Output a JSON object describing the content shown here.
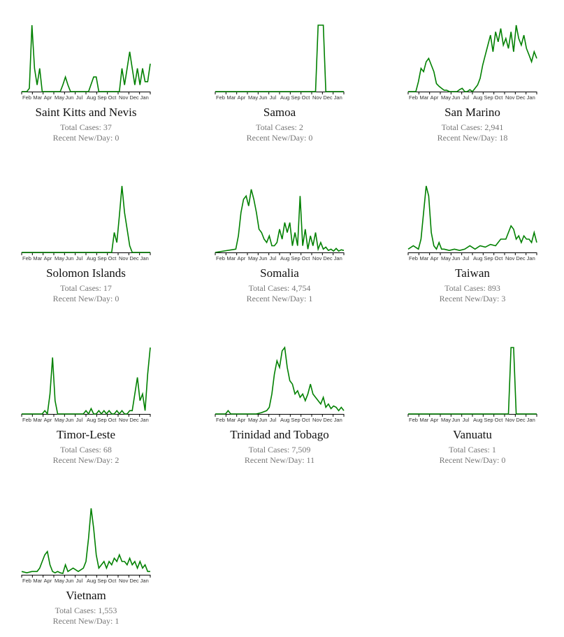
{
  "labels": {
    "total_prefix": "Total Cases: ",
    "recent_prefix": "Recent New/Day: "
  },
  "months": [
    "Feb",
    "Mar",
    "Apr",
    "May",
    "Jun",
    "Jul",
    "Aug",
    "Sep",
    "Oct",
    "Nov",
    "Dec",
    "Jan"
  ],
  "line_color": "#008000",
  "axis_color": "#000000",
  "chart_data": [
    {
      "type": "line",
      "name": "Saint Kitts and Nevis",
      "total": "37",
      "recent": "0",
      "x_ticks": [
        "Feb",
        "Mar",
        "Apr",
        "May",
        "Jun",
        "Jul",
        "Aug",
        "Sep",
        "Oct",
        "Nov",
        "Dec",
        "Jan"
      ],
      "ylim": [
        0,
        1
      ],
      "grid": false,
      "line_color": "#008000",
      "x": [
        0,
        2,
        3,
        4,
        5,
        6,
        7,
        8,
        9,
        10,
        11,
        12,
        14,
        15,
        16,
        17,
        18,
        19,
        20,
        21,
        22,
        23,
        24,
        25,
        26,
        28,
        29,
        30,
        31,
        32,
        33,
        34,
        35,
        36,
        38,
        39,
        40,
        41,
        42,
        43,
        44,
        45,
        46,
        47,
        48,
        49,
        50
      ],
      "values": [
        0,
        0,
        0.05,
        1,
        0.35,
        0.1,
        0.35,
        0,
        0,
        0,
        0,
        0,
        0,
        0,
        0.1,
        0.22,
        0.1,
        0,
        0,
        0,
        0,
        0,
        0,
        0,
        0,
        0.22,
        0.22,
        0,
        0,
        0,
        0,
        0,
        0,
        0,
        0,
        0.35,
        0.1,
        0.35,
        0.6,
        0.35,
        0.1,
        0.35,
        0.1,
        0.35,
        0.15,
        0.15,
        0.42
      ]
    },
    {
      "type": "line",
      "name": "Samoa",
      "total": "2",
      "recent": "0",
      "x_ticks": [
        "Feb",
        "Mar",
        "Apr",
        "May",
        "Jun",
        "Jul",
        "Aug",
        "Sep",
        "Oct",
        "Nov",
        "Dec",
        "Jan"
      ],
      "ylim": [
        0,
        1
      ],
      "grid": false,
      "line_color": "#008000",
      "x": [
        0,
        39,
        40,
        41,
        42,
        43,
        50
      ],
      "values": [
        0,
        0,
        1,
        1,
        1,
        0,
        0
      ]
    },
    {
      "type": "line",
      "name": "San Marino",
      "total": "2,941",
      "recent": "18",
      "x_ticks": [
        "Feb",
        "Mar",
        "Apr",
        "May",
        "Jun",
        "Jul",
        "Aug",
        "Sep",
        "Oct",
        "Nov",
        "Dec",
        "Jan"
      ],
      "ylim": [
        0,
        1
      ],
      "grid": false,
      "line_color": "#008000",
      "x": [
        0,
        3,
        4,
        5,
        6,
        7,
        8,
        9,
        10,
        11,
        12,
        13,
        14,
        15,
        16,
        17,
        18,
        19,
        20,
        21,
        22,
        23,
        24,
        25,
        26,
        27,
        28,
        29,
        30,
        31,
        32,
        33,
        34,
        35,
        36,
        37,
        38,
        39,
        40,
        41,
        42,
        43,
        44,
        45,
        46,
        47,
        48,
        49,
        50
      ],
      "values": [
        0,
        0,
        0.15,
        0.35,
        0.3,
        0.45,
        0.5,
        0.4,
        0.3,
        0.12,
        0.08,
        0.05,
        0.02,
        0.02,
        0,
        0,
        0,
        0,
        0.03,
        0.05,
        0,
        0,
        0.03,
        0,
        0.05,
        0.1,
        0.2,
        0.4,
        0.55,
        0.7,
        0.85,
        0.6,
        0.9,
        0.75,
        0.95,
        0.7,
        0.8,
        0.65,
        0.9,
        0.6,
        1,
        0.8,
        0.7,
        0.85,
        0.65,
        0.55,
        0.45,
        0.6,
        0.5
      ]
    },
    {
      "type": "line",
      "name": "Solomon Islands",
      "total": "17",
      "recent": "0",
      "x_ticks": [
        "Feb",
        "Mar",
        "Apr",
        "May",
        "Jun",
        "Jul",
        "Aug",
        "Sep",
        "Oct",
        "Nov",
        "Dec",
        "Jan"
      ],
      "ylim": [
        0,
        1
      ],
      "grid": false,
      "line_color": "#008000",
      "x": [
        0,
        35,
        36,
        37,
        38,
        39,
        40,
        41,
        42,
        43,
        50
      ],
      "values": [
        0,
        0,
        0.3,
        0.15,
        0.55,
        1,
        0.6,
        0.35,
        0.1,
        0,
        0
      ]
    },
    {
      "type": "line",
      "name": "Somalia",
      "total": "4,754",
      "recent": "1",
      "x_ticks": [
        "Feb",
        "Mar",
        "Apr",
        "May",
        "Jun",
        "Jul",
        "Aug",
        "Sep",
        "Oct",
        "Nov",
        "Dec",
        "Jan"
      ],
      "ylim": [
        0,
        1
      ],
      "grid": false,
      "line_color": "#008000",
      "x": [
        0,
        8,
        9,
        10,
        11,
        12,
        13,
        14,
        15,
        16,
        17,
        18,
        19,
        20,
        21,
        22,
        23,
        24,
        25,
        26,
        27,
        28,
        29,
        30,
        31,
        32,
        33,
        34,
        35,
        36,
        37,
        38,
        39,
        40,
        41,
        42,
        43,
        44,
        45,
        46,
        47,
        48,
        49,
        50
      ],
      "values": [
        0,
        0.05,
        0.25,
        0.6,
        0.8,
        0.85,
        0.7,
        0.95,
        0.8,
        0.6,
        0.35,
        0.3,
        0.2,
        0.15,
        0.25,
        0.1,
        0.1,
        0.15,
        0.35,
        0.2,
        0.45,
        0.3,
        0.45,
        0.1,
        0.3,
        0.1,
        0.85,
        0.1,
        0.35,
        0.05,
        0.25,
        0.1,
        0.3,
        0.05,
        0.15,
        0.05,
        0.08,
        0.03,
        0.05,
        0.02,
        0.06,
        0.02,
        0.04,
        0.03
      ]
    },
    {
      "type": "line",
      "name": "Taiwan",
      "total": "893",
      "recent": "3",
      "x_ticks": [
        "Feb",
        "Mar",
        "Apr",
        "May",
        "Jun",
        "Jul",
        "Aug",
        "Sep",
        "Oct",
        "Nov",
        "Dec",
        "Jan"
      ],
      "ylim": [
        0,
        1
      ],
      "grid": false,
      "line_color": "#008000",
      "x": [
        0,
        2,
        4,
        5,
        6,
        7,
        8,
        9,
        10,
        11,
        12,
        13,
        14,
        16,
        18,
        20,
        22,
        24,
        26,
        28,
        30,
        32,
        34,
        36,
        38,
        40,
        41,
        42,
        43,
        44,
        45,
        46,
        47,
        48,
        49,
        50
      ],
      "values": [
        0.05,
        0.1,
        0.05,
        0.2,
        0.6,
        1,
        0.85,
        0.3,
        0.1,
        0.05,
        0.15,
        0.05,
        0.05,
        0.03,
        0.05,
        0.03,
        0.05,
        0.1,
        0.05,
        0.1,
        0.08,
        0.12,
        0.1,
        0.2,
        0.2,
        0.4,
        0.35,
        0.2,
        0.25,
        0.15,
        0.25,
        0.2,
        0.2,
        0.15,
        0.3,
        0.15
      ]
    },
    {
      "type": "line",
      "name": "Timor-Leste",
      "total": "68",
      "recent": "2",
      "x_ticks": [
        "Feb",
        "Mar",
        "Apr",
        "May",
        "Jun",
        "Jul",
        "Aug",
        "Sep",
        "Oct",
        "Nov",
        "Dec",
        "Jan"
      ],
      "ylim": [
        0,
        1
      ],
      "grid": false,
      "line_color": "#008000",
      "x": [
        0,
        8,
        9,
        10,
        11,
        12,
        13,
        14,
        15,
        24,
        25,
        26,
        27,
        28,
        29,
        30,
        31,
        32,
        33,
        34,
        35,
        36,
        37,
        38,
        39,
        40,
        41,
        42,
        43,
        44,
        45,
        46,
        47,
        48,
        49,
        50
      ],
      "values": [
        0,
        0,
        0.05,
        0,
        0.3,
        0.85,
        0.2,
        0,
        0,
        0,
        0.05,
        0,
        0.08,
        0,
        0,
        0.05,
        0,
        0.05,
        0,
        0.05,
        0,
        0,
        0.05,
        0,
        0.05,
        0,
        0,
        0.05,
        0.05,
        0.3,
        0.55,
        0.2,
        0.3,
        0.05,
        0.6,
        1
      ]
    },
    {
      "type": "line",
      "name": "Trinidad and Tobago",
      "total": "7,509",
      "recent": "11",
      "x_ticks": [
        "Feb",
        "Mar",
        "Apr",
        "May",
        "Jun",
        "Jul",
        "Aug",
        "Sep",
        "Oct",
        "Nov",
        "Dec",
        "Jan"
      ],
      "ylim": [
        0,
        1
      ],
      "grid": false,
      "line_color": "#008000",
      "x": [
        0,
        4,
        5,
        6,
        10,
        14,
        16,
        18,
        20,
        21,
        22,
        23,
        24,
        25,
        26,
        27,
        28,
        29,
        30,
        31,
        32,
        33,
        34,
        35,
        36,
        37,
        38,
        39,
        40,
        41,
        42,
        43,
        44,
        45,
        46,
        47,
        48,
        49,
        50
      ],
      "values": [
        0,
        0,
        0.05,
        0,
        0,
        0,
        0,
        0.02,
        0.05,
        0.1,
        0.3,
        0.6,
        0.8,
        0.7,
        0.95,
        1,
        0.7,
        0.5,
        0.45,
        0.3,
        0.35,
        0.25,
        0.3,
        0.2,
        0.3,
        0.45,
        0.3,
        0.25,
        0.2,
        0.15,
        0.25,
        0.1,
        0.15,
        0.08,
        0.12,
        0.1,
        0.05,
        0.1,
        0.05
      ]
    },
    {
      "type": "line",
      "name": "Vanuatu",
      "total": "1",
      "recent": "0",
      "x_ticks": [
        "Feb",
        "Mar",
        "Apr",
        "May",
        "Jun",
        "Jul",
        "Aug",
        "Sep",
        "Oct",
        "Nov",
        "Dec",
        "Jan"
      ],
      "ylim": [
        0,
        1
      ],
      "grid": false,
      "line_color": "#008000",
      "x": [
        0,
        39,
        40,
        41,
        42,
        50
      ],
      "values": [
        0,
        0,
        1,
        1,
        0,
        0
      ]
    },
    {
      "type": "line",
      "name": "Vietnam",
      "total": "1,553",
      "recent": "1",
      "x_ticks": [
        "Feb",
        "Mar",
        "Apr",
        "May",
        "Jun",
        "Jul",
        "Aug",
        "Sep",
        "Oct",
        "Nov",
        "Dec",
        "Jan"
      ],
      "ylim": [
        0,
        1
      ],
      "grid": false,
      "line_color": "#008000",
      "x": [
        0,
        2,
        4,
        6,
        7,
        8,
        9,
        10,
        11,
        12,
        13,
        14,
        15,
        16,
        17,
        18,
        20,
        22,
        24,
        25,
        26,
        27,
        28,
        29,
        30,
        31,
        32,
        33,
        34,
        35,
        36,
        37,
        38,
        39,
        40,
        41,
        42,
        43,
        44,
        45,
        46,
        47,
        48,
        49,
        50
      ],
      "values": [
        0.05,
        0.03,
        0.05,
        0.05,
        0.1,
        0.2,
        0.3,
        0.35,
        0.15,
        0.05,
        0.03,
        0.05,
        0.03,
        0.02,
        0.15,
        0.05,
        0.1,
        0.05,
        0.1,
        0.2,
        0.55,
        1,
        0.7,
        0.3,
        0.1,
        0.15,
        0.2,
        0.1,
        0.2,
        0.15,
        0.25,
        0.2,
        0.3,
        0.2,
        0.2,
        0.15,
        0.25,
        0.15,
        0.2,
        0.1,
        0.2,
        0.1,
        0.15,
        0.05,
        0.05
      ]
    }
  ]
}
